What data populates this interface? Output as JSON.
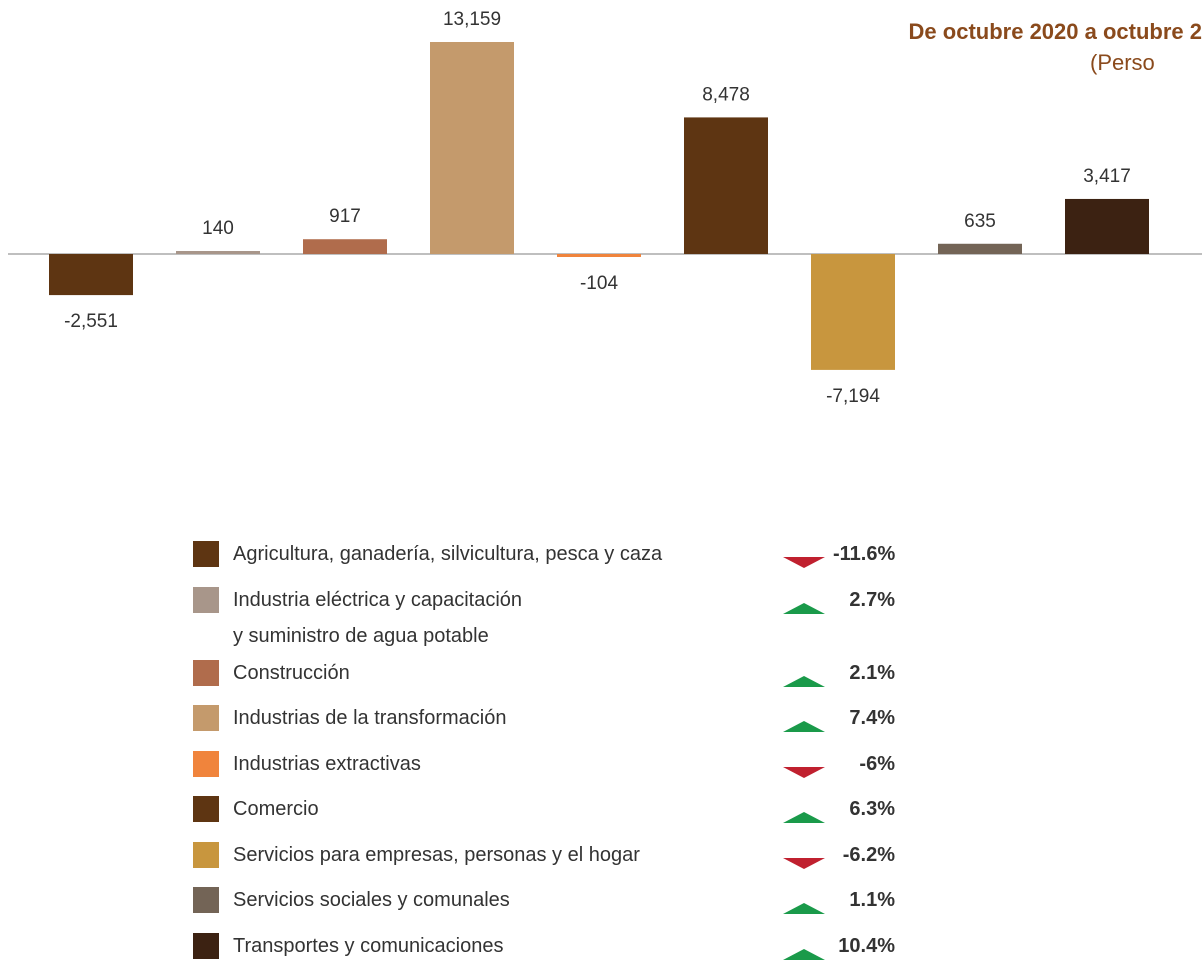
{
  "chart_data": {
    "type": "bar",
    "title": "De octubre 2020 a octubre 2",
    "subtitle": "(Perso",
    "categories": [
      "Agricultura, ganadería, silvicultura, pesca y caza",
      "Industria eléctrica y capacitación\ny suministro de agua potable",
      "Construcción",
      "Industrias de la transformación",
      "Industrias extractivas",
      "Comercio",
      "Servicios para empresas, personas y el hogar",
      "Servicios sociales y comunales",
      "Transportes y comunicaciones"
    ],
    "values": [
      -2551,
      140,
      917,
      13159,
      -104,
      8478,
      -7194,
      635,
      3417
    ],
    "value_labels": [
      "-2,551",
      "140",
      "917",
      "13,159",
      "-104",
      "8,478",
      "-7,194",
      "635",
      "3,417"
    ],
    "colors": [
      "#5e3512",
      "#a8968a",
      "#b06c4c",
      "#c49a6c",
      "#f0843c",
      "#5e3512",
      "#c8963e",
      "#736456",
      "#3c2212"
    ],
    "changes": [
      -11.6,
      2.7,
      2.1,
      7.4,
      -6,
      6.3,
      -6.2,
      1.1,
      10.4
    ],
    "change_labels": [
      "-11.6%",
      "2.7%",
      "2.1%",
      "7.4%",
      "-6%",
      "6.3%",
      "-6.2%",
      "1.1%",
      "10.4%"
    ]
  }
}
